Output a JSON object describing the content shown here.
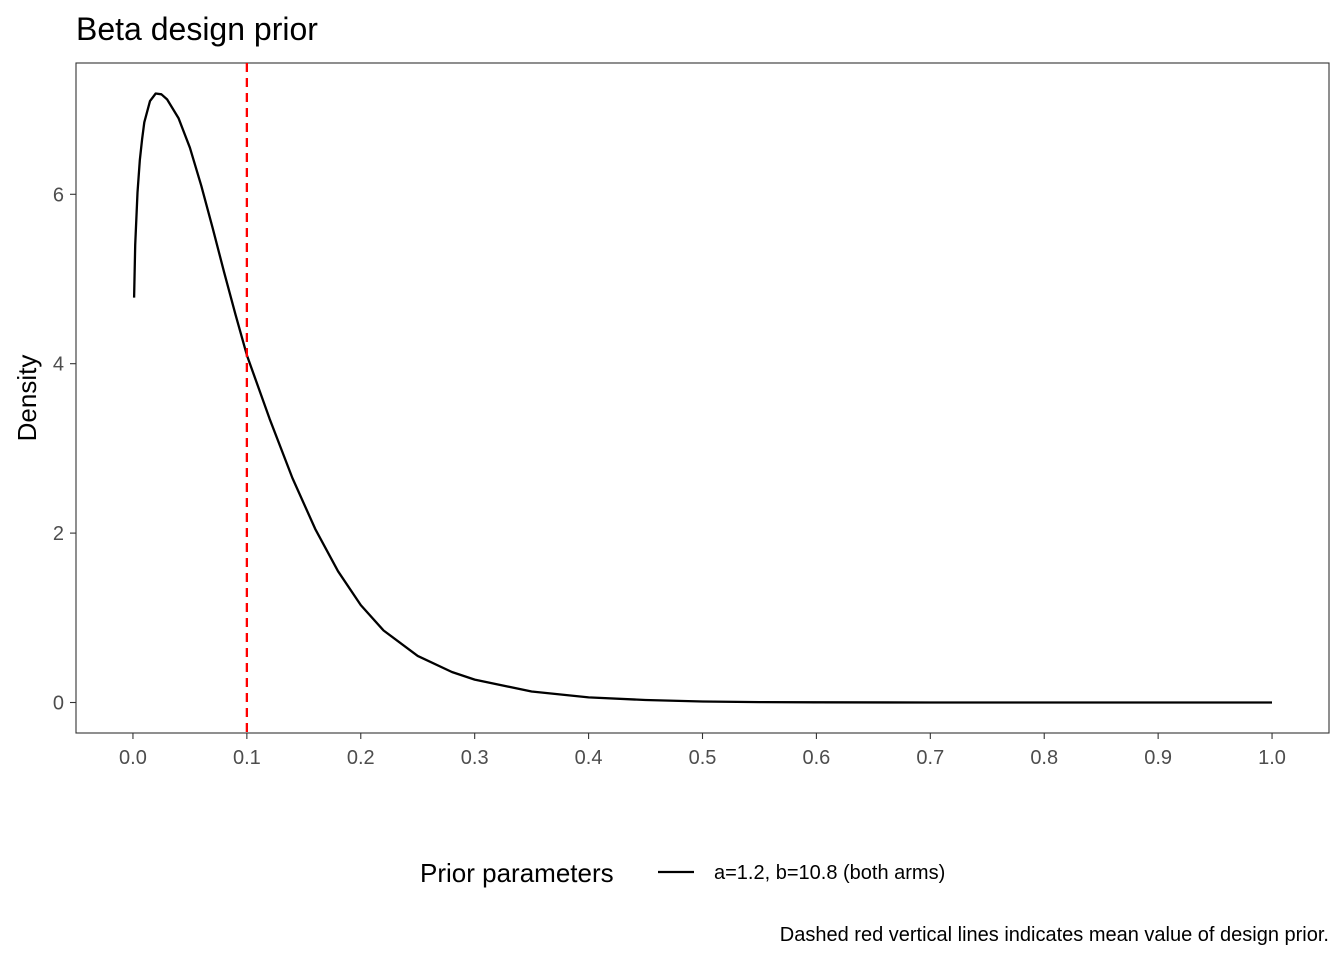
{
  "chart_data": {
    "type": "line",
    "title": "Beta design prior",
    "xlabel": "",
    "ylabel": "Density",
    "xlim": [
      -0.05,
      1.05
    ],
    "ylim": [
      -0.36,
      7.55
    ],
    "x_ticks": [
      0.0,
      0.1,
      0.2,
      0.3,
      0.4,
      0.5,
      0.6,
      0.7,
      0.8,
      0.9,
      1.0
    ],
    "x_tick_labels": [
      "0.0",
      "0.1",
      "0.2",
      "0.3",
      "0.4",
      "0.5",
      "0.6",
      "0.7",
      "0.8",
      "0.9",
      "1.0"
    ],
    "y_ticks": [
      0,
      2,
      4,
      6
    ],
    "y_tick_labels": [
      "0",
      "2",
      "4",
      "6"
    ],
    "grid": false,
    "legend_placement": "bottom",
    "series": [
      {
        "name": "a=1.2, b=10.8 (both arms)",
        "color": "#000000",
        "x": [
          0.001,
          0.002,
          0.004,
          0.006,
          0.008,
          0.01,
          0.015,
          0.02,
          0.025,
          0.03,
          0.04,
          0.05,
          0.06,
          0.07,
          0.08,
          0.09,
          0.1,
          0.12,
          0.14,
          0.16,
          0.18,
          0.2,
          0.22,
          0.25,
          0.28,
          0.3,
          0.35,
          0.4,
          0.45,
          0.5,
          0.55,
          0.6,
          0.7,
          0.8,
          0.9,
          1.0
        ],
        "y": [
          4.78,
          5.4,
          6.02,
          6.4,
          6.65,
          6.85,
          7.1,
          7.19,
          7.18,
          7.12,
          6.9,
          6.55,
          6.1,
          5.6,
          5.08,
          4.58,
          4.1,
          3.35,
          2.65,
          2.05,
          1.55,
          1.15,
          0.85,
          0.55,
          0.36,
          0.27,
          0.13,
          0.06,
          0.03,
          0.012,
          0.005,
          0.002,
          0.0003,
          0.0,
          0.0,
          0.0
        ]
      }
    ],
    "reference_lines": [
      {
        "axis": "x",
        "value": 0.1,
        "color": "#ff0000",
        "style": "dashed"
      }
    ],
    "legend": {
      "title": "Prior parameters",
      "entries": [
        "a=1.2, b=10.8 (both arms)"
      ]
    },
    "caption": "Dashed red vertical lines indicates mean value of design prior."
  }
}
